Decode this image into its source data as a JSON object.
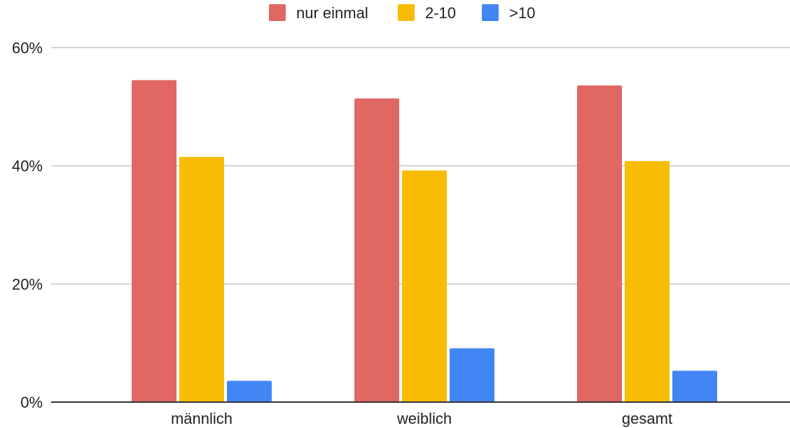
{
  "chart_data": {
    "type": "bar",
    "title": "",
    "xlabel": "",
    "ylabel": "",
    "categories": [
      "männlich",
      "weiblich",
      "gesamt"
    ],
    "series": [
      {
        "name": "nur einmal",
        "color": "#e06762",
        "values": [
          54.5,
          51.4,
          53.6
        ]
      },
      {
        "name": "2-10",
        "color": "#f8bc05",
        "values": [
          41.5,
          39.2,
          40.8
        ]
      },
      {
        "name": ">10",
        "color": "#4286f5",
        "values": [
          3.6,
          9.1,
          5.3
        ]
      }
    ],
    "ylim": [
      0,
      60
    ],
    "yticks": [
      0,
      20,
      40,
      60
    ],
    "ytick_labels": [
      "0%",
      "20%",
      "40%",
      "60%"
    ],
    "grid": true,
    "legend_position": "top-center"
  }
}
